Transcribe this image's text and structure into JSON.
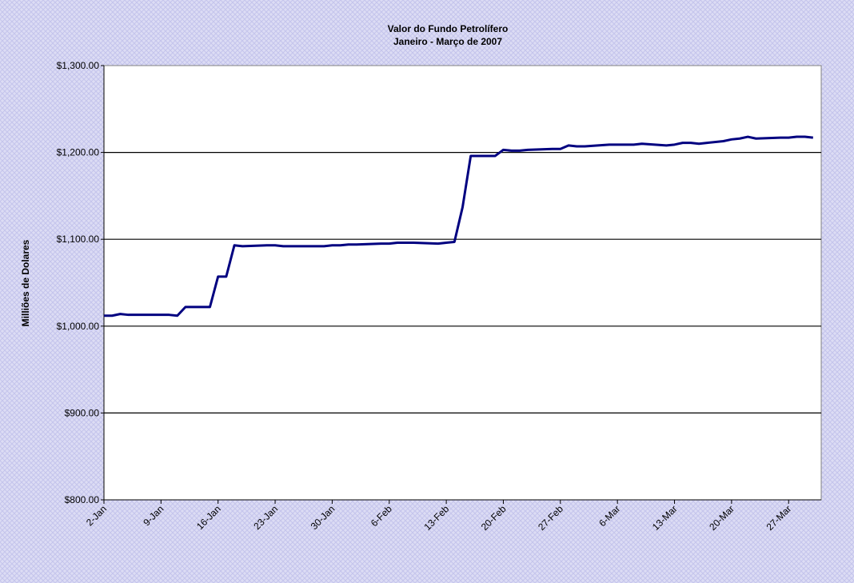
{
  "chart_data": {
    "type": "line",
    "title": "Valor do Fundo Petrolífero",
    "subtitle": "Janeiro - Março de 2007",
    "y_label": "Milliões de Dolares",
    "x": [
      "2-Jan",
      "3-Jan",
      "4-Jan",
      "5-Jan",
      "8-Jan",
      "9-Jan",
      "10-Jan",
      "11-Jan",
      "12-Jan",
      "15-Jan",
      "16-Jan",
      "17-Jan",
      "18-Jan",
      "19-Jan",
      "22-Jan",
      "23-Jan",
      "24-Jan",
      "25-Jan",
      "26-Jan",
      "29-Jan",
      "30-Jan",
      "31-Jan",
      "1-Feb",
      "2-Feb",
      "5-Feb",
      "6-Feb",
      "7-Feb",
      "8-Feb",
      "9-Feb",
      "12-Feb",
      "13-Feb",
      "14-Feb",
      "15-Feb",
      "16-Feb",
      "19-Feb",
      "20-Feb",
      "21-Feb",
      "22-Feb",
      "23-Feb",
      "26-Feb",
      "27-Feb",
      "28-Feb",
      "1-Mar",
      "2-Mar",
      "5-Mar",
      "6-Mar",
      "7-Mar",
      "8-Mar",
      "9-Mar",
      "12-Mar",
      "13-Mar",
      "14-Mar",
      "15-Mar",
      "16-Mar",
      "19-Mar",
      "20-Mar",
      "21-Mar",
      "22-Mar",
      "23-Mar",
      "26-Mar",
      "27-Mar",
      "28-Mar",
      "29-Mar",
      "30-Mar"
    ],
    "series": [
      {
        "name": "Valor",
        "color": "#000080",
        "values": [
          1012,
          1012,
          1014,
          1013,
          1013,
          1013,
          1013,
          1012,
          1022,
          1022,
          1057,
          1057,
          1093,
          1092,
          1093,
          1093,
          1092,
          1092,
          1092,
          1092,
          1093,
          1093,
          1094,
          1094,
          1095,
          1095,
          1096,
          1096,
          1096,
          1095,
          1096,
          1097,
          1137,
          1196,
          1196,
          1203,
          1202,
          1202,
          1203,
          1204,
          1204,
          1208,
          1207,
          1207,
          1209,
          1209,
          1209,
          1209,
          1210,
          1208,
          1209,
          1211,
          1211,
          1210,
          1213,
          1215,
          1216,
          1218,
          1216,
          1217,
          1217,
          1218,
          1218,
          1217
        ]
      }
    ],
    "xlim": [
      "2-Jan",
      "31-Mar"
    ],
    "xticks": [
      "2-Jan",
      "9-Jan",
      "16-Jan",
      "23-Jan",
      "30-Jan",
      "6-Feb",
      "13-Feb",
      "20-Feb",
      "27-Feb",
      "6-Mar",
      "13-Mar",
      "20-Mar",
      "27-Mar"
    ],
    "ylim": [
      800,
      1300
    ],
    "yticks": [
      {
        "value": 800,
        "label": "$800.00"
      },
      {
        "value": 900,
        "label": "$900.00"
      },
      {
        "value": 1000,
        "label": "$1,000.00"
      },
      {
        "value": 1100,
        "label": "$1,100.00"
      },
      {
        "value": 1200,
        "label": "$1,200.00"
      },
      {
        "value": 1300,
        "label": "$1,300.00"
      }
    ],
    "grid": true
  }
}
